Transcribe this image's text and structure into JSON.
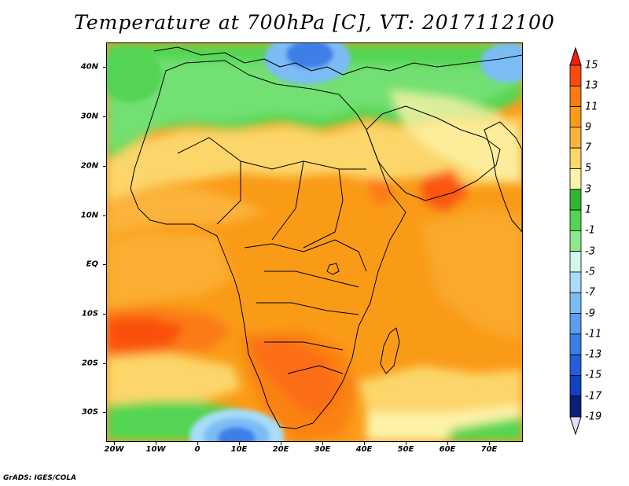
{
  "title": "Temperature at 700hPa [C], VT: 2017112100",
  "credit": "GrADS: IGES/COLA",
  "map": {
    "lat_range": [
      -36,
      45
    ],
    "lon_range": [
      -20,
      80
    ],
    "lat_ticks": [
      {
        "value": 40,
        "label": "40N"
      },
      {
        "value": 30,
        "label": "30N"
      },
      {
        "value": 20,
        "label": "20N"
      },
      {
        "value": 10,
        "label": "10N"
      },
      {
        "value": 0,
        "label": "EQ"
      },
      {
        "value": -10,
        "label": "10S"
      },
      {
        "value": -20,
        "label": "20S"
      },
      {
        "value": -30,
        "label": "30S"
      }
    ],
    "lon_ticks": [
      {
        "value": -20,
        "label": "20W"
      },
      {
        "value": -10,
        "label": "10W"
      },
      {
        "value": 0,
        "label": "0"
      },
      {
        "value": 10,
        "label": "10E"
      },
      {
        "value": 20,
        "label": "20E"
      },
      {
        "value": 30,
        "label": "30E"
      },
      {
        "value": 40,
        "label": "40E"
      },
      {
        "value": 50,
        "label": "50E"
      },
      {
        "value": 60,
        "label": "60E"
      },
      {
        "value": 70,
        "label": "70E"
      }
    ]
  },
  "colorbar": {
    "levels": [
      "15",
      "13",
      "11",
      "9",
      "7",
      "5",
      "3",
      "1",
      "-1",
      "-3",
      "-5",
      "-7",
      "-9",
      "-11",
      "-13",
      "-15",
      "-17",
      "-19"
    ],
    "colors": [
      "#f41e10",
      "#fa4b10",
      "#fb7a14",
      "#fa9b18",
      "#fbb33a",
      "#fcd66a",
      "#fdf3a8",
      "#30b730",
      "#52d552",
      "#8ce98c",
      "#d1f8e9",
      "#a9dcf8",
      "#7bbcf5",
      "#5a9ef0",
      "#3c7ee8",
      "#2160d8",
      "#1140c0",
      "#0a1e7a",
      "#e8ddf6"
    ]
  }
}
